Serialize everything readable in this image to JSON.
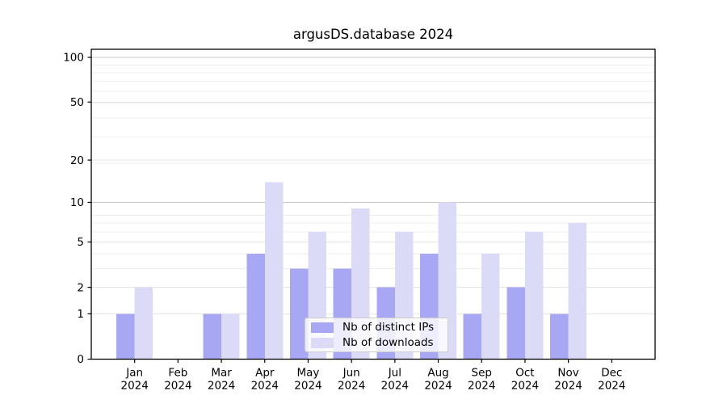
{
  "chart_data": {
    "type": "bar",
    "title": "argusDS.database 2024",
    "categories": [
      "Jan",
      "Feb",
      "Mar",
      "Apr",
      "May",
      "Jun",
      "Jul",
      "Aug",
      "Sep",
      "Oct",
      "Nov",
      "Dec"
    ],
    "x_tick_line2": "2024",
    "series": [
      {
        "name": "Nb of distinct IPs",
        "color": "#a7a7f3",
        "values": [
          1,
          0,
          1,
          4,
          3,
          3,
          2,
          4,
          1,
          2,
          1,
          0
        ]
      },
      {
        "name": "Nb of downloads",
        "color": "#dbdbf8",
        "values": [
          2,
          0,
          1,
          14,
          6,
          9,
          6,
          10,
          4,
          6,
          7,
          0
        ]
      }
    ],
    "yscale": "log1p",
    "yticks": [
      0,
      1,
      2,
      5,
      10,
      20,
      50,
      100
    ],
    "ylim": [
      0,
      113
    ],
    "grid": true,
    "legend": {
      "position": "lower-center-inside"
    },
    "colors": {
      "major_grid": "#c8c8c8",
      "labeled_grid": "#e4e4e4",
      "minor_grid": "#efefef",
      "axis": "#000000",
      "background": "#ffffff",
      "text": "#000000"
    }
  }
}
